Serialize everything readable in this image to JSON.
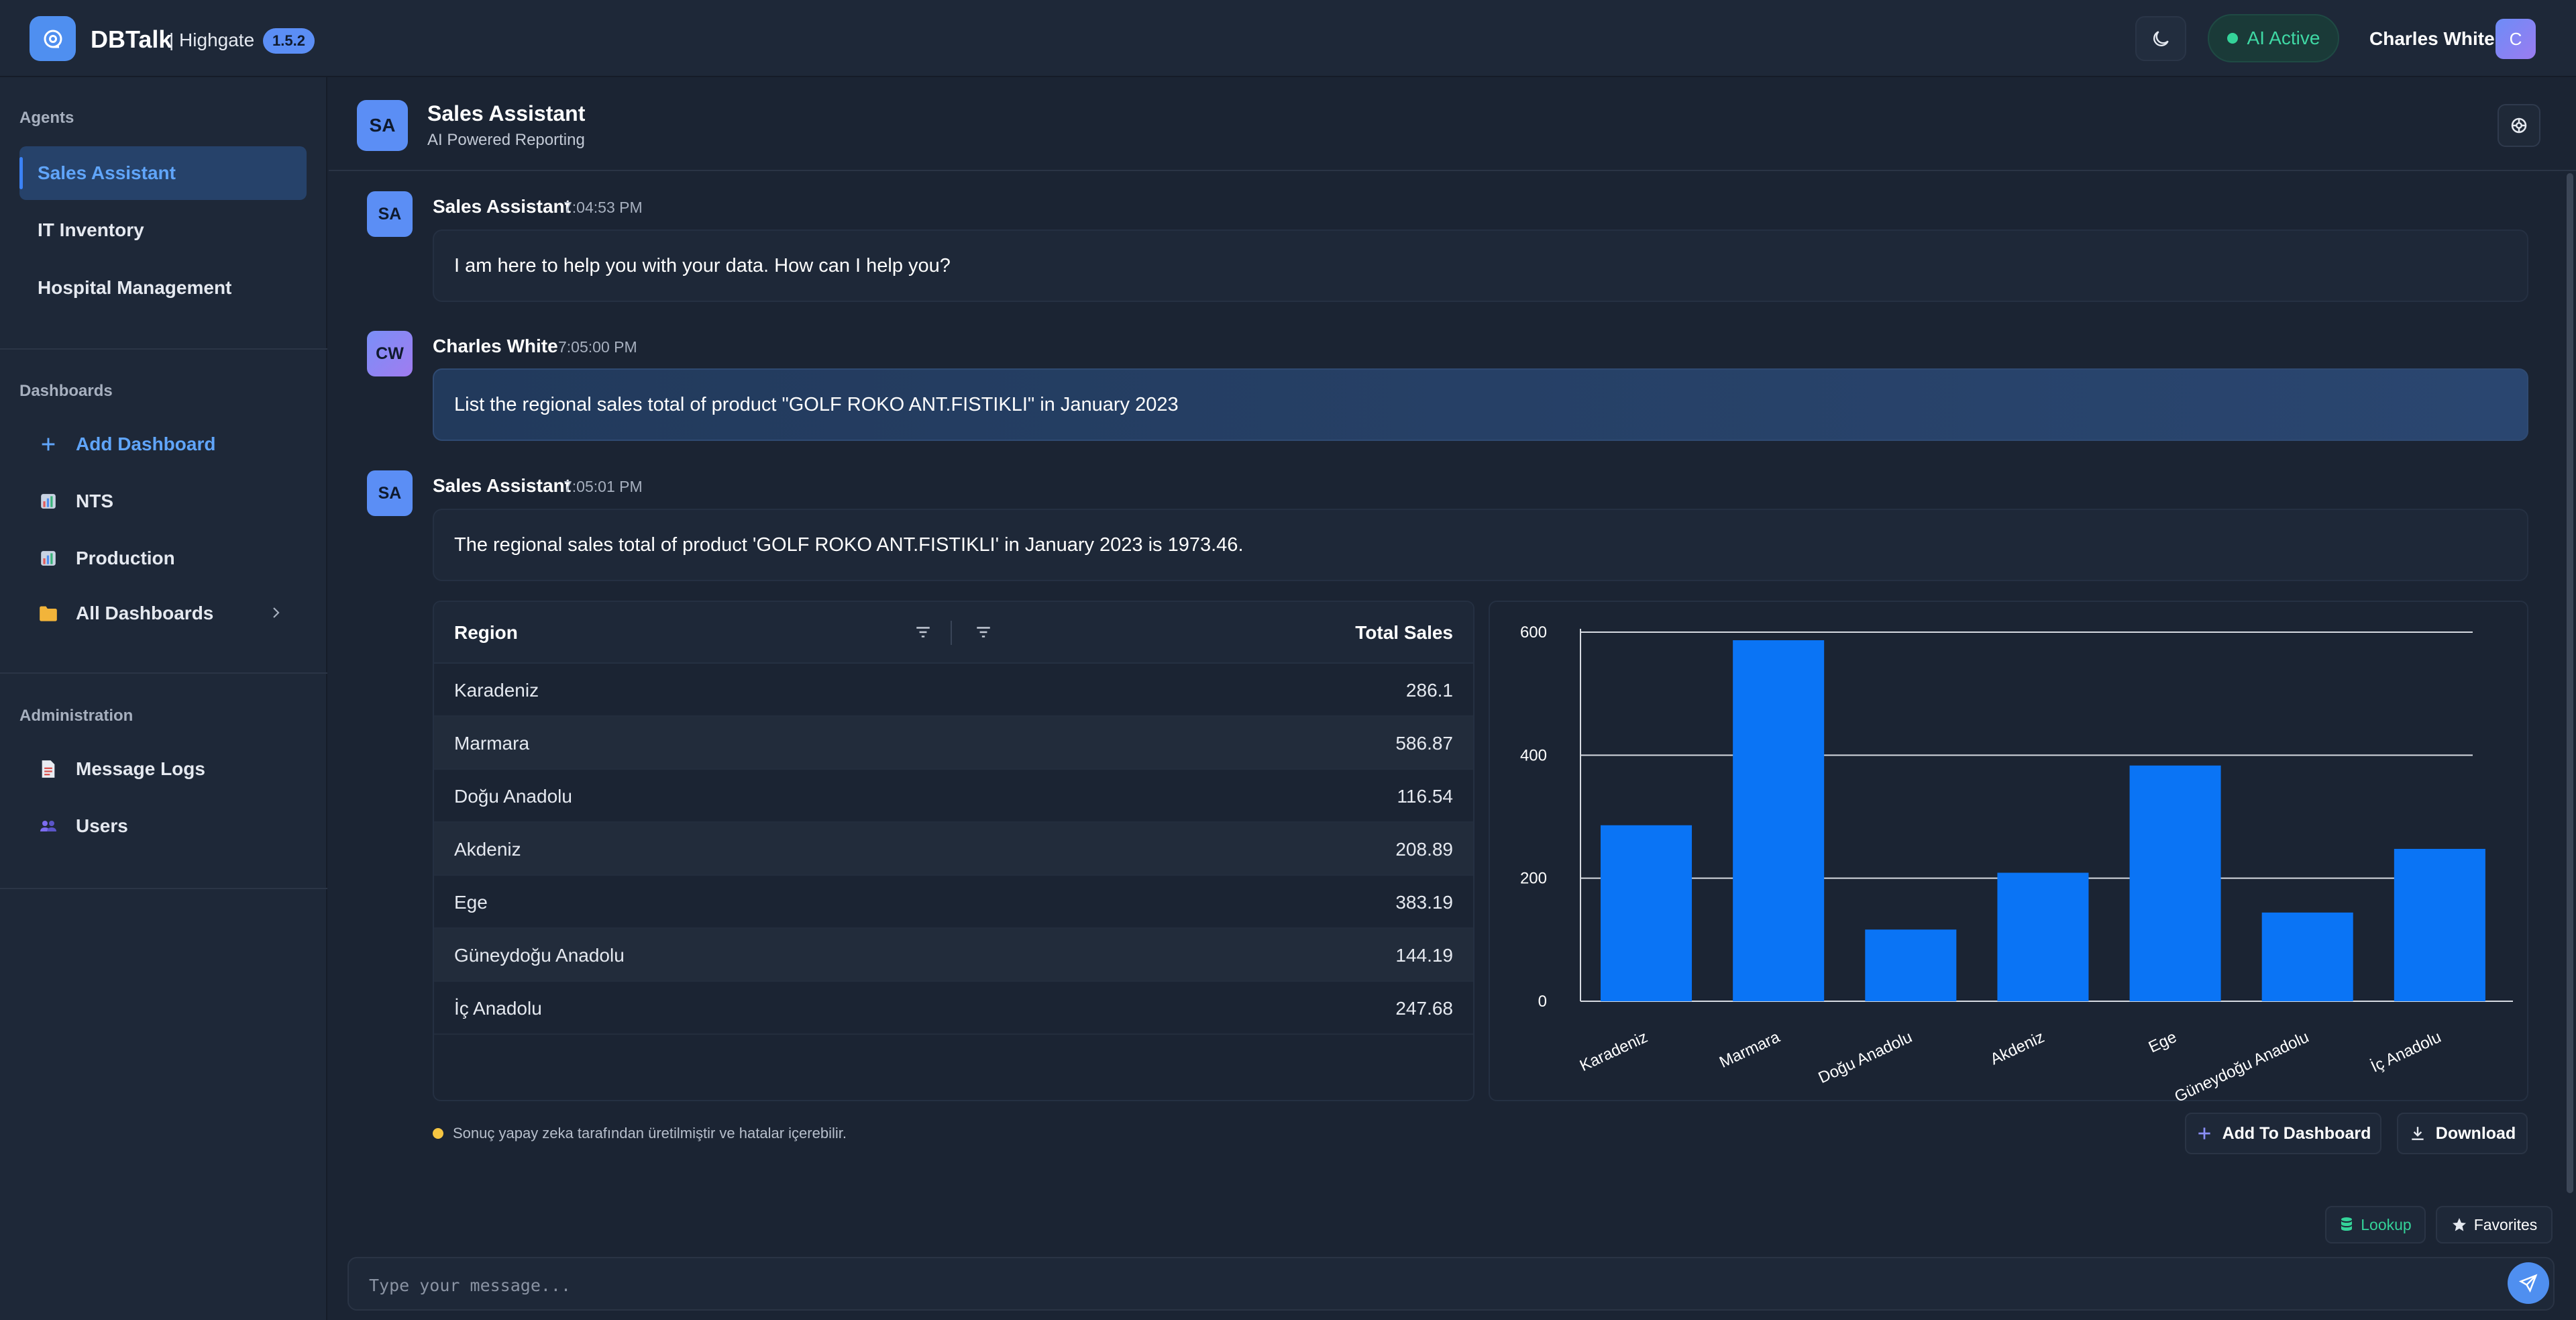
{
  "app": {
    "name": "DBTalk",
    "workspace": "| Highgate",
    "version": "1.5.2",
    "ai_status": "AI Active",
    "user_name": "Charles White",
    "user_initial": "C"
  },
  "sidebar": {
    "agents_title": "Agents",
    "agents": [
      {
        "label": "Sales Assistant",
        "active": true
      },
      {
        "label": "IT Inventory"
      },
      {
        "label": "Hospital Management"
      }
    ],
    "dashboards_title": "Dashboards",
    "dashboards": [
      {
        "label": "Add Dashboard",
        "icon": "plus-icon"
      },
      {
        "label": "NTS",
        "icon": "chart-icon"
      },
      {
        "label": "Production",
        "icon": "chart-icon"
      },
      {
        "label": "All Dashboards",
        "icon": "folder-icon"
      }
    ],
    "admin_title": "Administration",
    "admin": [
      {
        "label": "Message Logs",
        "icon": "document-icon"
      },
      {
        "label": "Users",
        "icon": "users-icon"
      }
    ]
  },
  "chat_header": {
    "avatar": "SA",
    "title": "Sales Assistant",
    "subtitle": "AI Powered Reporting"
  },
  "messages": [
    {
      "avatar": "SA",
      "author": "Sales Assistant",
      "time": "7:04:53 PM",
      "text": "I am here to help you with your data. How can I help you?"
    },
    {
      "avatar": "CW",
      "author": "Charles White",
      "time": "7:05:00 PM",
      "text": "List the regional sales total of product \"GOLF ROKO ANT.FISTIKLI\" in January 2023"
    },
    {
      "avatar": "SA",
      "author": "Sales Assistant",
      "time": "7:05:01 PM",
      "text": "The regional sales total of product 'GOLF ROKO ANT.FISTIKLI' in January 2023 is 1973.46."
    }
  ],
  "table": {
    "headers": [
      "Region",
      "Total Sales"
    ],
    "rows": [
      [
        "Karadeniz",
        "286.1"
      ],
      [
        "Marmara",
        "586.87"
      ],
      [
        "Doğu Anadolu",
        "116.54"
      ],
      [
        "Akdeniz",
        "208.89"
      ],
      [
        "Ege",
        "383.19"
      ],
      [
        "Güneydoğu Anadolu",
        "144.19"
      ],
      [
        "İç Anadolu",
        "247.68"
      ]
    ]
  },
  "chart_data": {
    "type": "bar",
    "categories": [
      "Karadeniz",
      "Marmara",
      "Doğu Anadolu",
      "Akdeniz",
      "Ege",
      "Güneydoğu Anadolu",
      "İç Anadolu"
    ],
    "values": [
      286.1,
      586.87,
      116.54,
      208.89,
      383.19,
      144.19,
      247.68
    ],
    "yticks": [
      "0",
      "200",
      "400",
      "600"
    ],
    "ylim": [
      0,
      600
    ],
    "grid": true,
    "bar_color": "#0a74f5",
    "title": "",
    "xlabel": "",
    "ylabel": ""
  },
  "footer": {
    "disclaimer": "Sonuç yapay zeka tarafından üretilmiştir ve hatalar içerebilir.",
    "add_to_dashboard": "Add To Dashboard",
    "download": "Download"
  },
  "composer": {
    "lookup": "Lookup",
    "favorites": "Favorites",
    "placeholder": "Type your message..."
  },
  "colors": {
    "accent": "#4f8ff0",
    "success": "#34d399",
    "warning": "#f5c542"
  }
}
